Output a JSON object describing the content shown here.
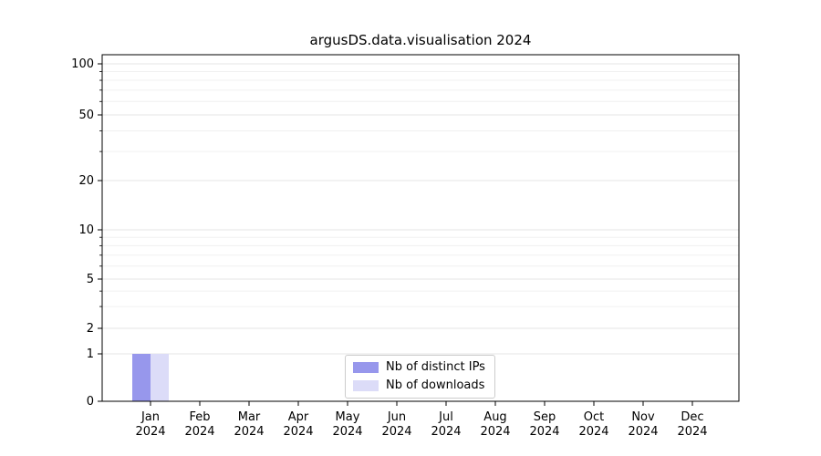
{
  "title": "argusDS.data.visualisation 2024",
  "chart_data": {
    "type": "bar",
    "title": "argusDS.data.visualisation 2024",
    "categories": [
      "Jan 2024",
      "Feb 2024",
      "Mar 2024",
      "Apr 2024",
      "May 2024",
      "Jun 2024",
      "Jul 2024",
      "Aug 2024",
      "Sep 2024",
      "Oct 2024",
      "Nov 2024",
      "Dec 2024"
    ],
    "series": [
      {
        "name": "Nb of distinct IPs",
        "color": "#9797ec",
        "values": [
          1,
          0,
          0,
          0,
          0,
          0,
          0,
          0,
          0,
          0,
          0,
          0
        ]
      },
      {
        "name": "Nb of downloads",
        "color": "#dcdcf8",
        "values": [
          1,
          0,
          0,
          0,
          0,
          0,
          0,
          0,
          0,
          0,
          0,
          0
        ]
      }
    ],
    "yscale": "symlog",
    "ylim": [
      0,
      100
    ],
    "y_ticks": [
      0,
      1,
      2,
      5,
      10,
      20,
      50,
      100
    ],
    "grid": "horizontal",
    "legend_position": "lower center",
    "colors": {
      "grid_minor": "#f0f0f0",
      "grid_major": "#e4e4e4",
      "axis": "#000000"
    }
  }
}
